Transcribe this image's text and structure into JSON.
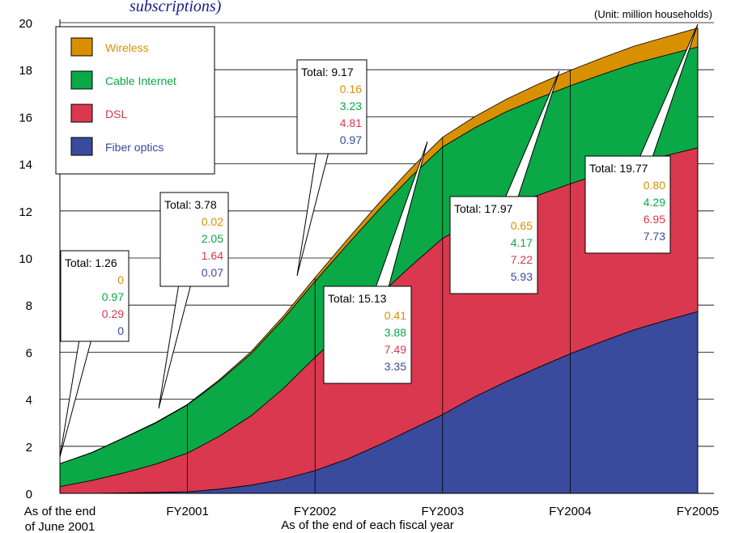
{
  "chart_data": {
    "type": "area",
    "title": "subscriptions)",
    "unit_label": "(Unit: million households)",
    "xlabel": "As of the end of each fiscal year",
    "ylim": [
      0,
      20
    ],
    "yticks": [
      "0",
      "2",
      "4",
      "6",
      "8",
      "10",
      "12",
      "14",
      "16",
      "18",
      "20"
    ],
    "x_tick_labels": [
      {
        "line1": "As of the end",
        "line2": "of June 2001"
      },
      {
        "line1": "FY2001",
        "line2": ""
      },
      {
        "line1": "FY2002",
        "line2": ""
      },
      {
        "line1": "FY2003",
        "line2": ""
      },
      {
        "line1": "FY2004",
        "line2": ""
      },
      {
        "line1": "FY2005",
        "line2": ""
      }
    ],
    "x": [
      0,
      0.25,
      0.5,
      0.75,
      1,
      1.25,
      1.5,
      1.75,
      2,
      2.25,
      2.5,
      2.75,
      3,
      3.25,
      3.5,
      3.75,
      4,
      4.25,
      4.5,
      4.75,
      5
    ],
    "series": [
      {
        "name": "Fiber optics",
        "color": "#3a4a9c",
        "values": [
          0,
          0,
          0.02,
          0.04,
          0.07,
          0.18,
          0.35,
          0.6,
          0.97,
          1.45,
          2.05,
          2.7,
          3.35,
          4.1,
          4.75,
          5.35,
          5.93,
          6.45,
          6.95,
          7.35,
          7.73
        ]
      },
      {
        "name": "DSL",
        "color": "#d9384f",
        "values": [
          0.29,
          0.55,
          0.85,
          1.2,
          1.64,
          2.25,
          2.95,
          3.85,
          4.81,
          5.6,
          6.35,
          6.95,
          7.49,
          7.48,
          7.42,
          7.32,
          7.22,
          7.15,
          7.07,
          7.0,
          6.95
        ]
      },
      {
        "name": "Cable Internet",
        "color": "#0aa846",
        "values": [
          0.97,
          1.18,
          1.48,
          1.75,
          2.05,
          2.35,
          2.65,
          2.95,
          3.23,
          3.5,
          3.65,
          3.8,
          3.88,
          3.95,
          4.05,
          4.12,
          4.17,
          4.2,
          4.24,
          4.27,
          4.29
        ]
      },
      {
        "name": "Wireless",
        "color": "#d99000",
        "values": [
          0,
          0.01,
          0.01,
          0.02,
          0.02,
          0.05,
          0.08,
          0.12,
          0.16,
          0.22,
          0.28,
          0.35,
          0.41,
          0.47,
          0.53,
          0.6,
          0.65,
          0.7,
          0.74,
          0.77,
          0.8
        ]
      }
    ],
    "legend": [
      {
        "label": "Wireless",
        "color": "#d99000"
      },
      {
        "label": "Cable Internet",
        "color": "#0aa846"
      },
      {
        "label": "DSL",
        "color": "#d9384f"
      },
      {
        "label": "Fiber optics",
        "color": "#3a4a9c"
      }
    ],
    "callouts": [
      {
        "x": 0,
        "total": "Total: 1.26",
        "wireless": "0",
        "cable": "0.97",
        "dsl": "0.29",
        "fiber": "0"
      },
      {
        "x": 1,
        "total": "Total: 3.78",
        "wireless": "0.02",
        "cable": "2.05",
        "dsl": "1.64",
        "fiber": "0.07"
      },
      {
        "x": 2,
        "total": "Total: 9.17",
        "wireless": "0.16",
        "cable": "3.23",
        "dsl": "4.81",
        "fiber": "0.97"
      },
      {
        "x": 3,
        "total": "Total: 15.13",
        "wireless": "0.41",
        "cable": "3.88",
        "dsl": "7.49",
        "fiber": "3.35"
      },
      {
        "x": 4,
        "total": "Total: 17.97",
        "wireless": "0.65",
        "cable": "4.17",
        "dsl": "7.22",
        "fiber": "5.93"
      },
      {
        "x": 5,
        "total": "Total: 19.77",
        "wireless": "0.80",
        "cable": "4.29",
        "dsl": "6.95",
        "fiber": "7.73"
      }
    ],
    "grid": true,
    "legend_position": "top-left"
  }
}
